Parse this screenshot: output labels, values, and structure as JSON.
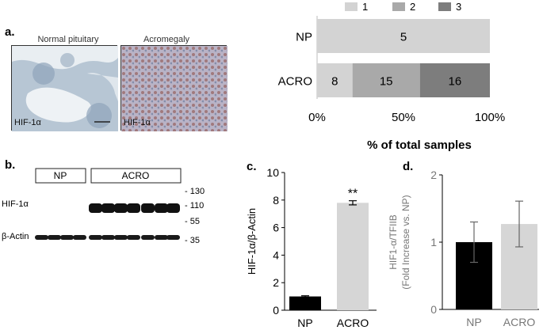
{
  "panel_a": {
    "letter": "a.",
    "images": [
      {
        "title": "Normal pituitary",
        "tag": "HIF-1α"
      },
      {
        "title": "Acromegaly",
        "tag": "HIF-1α"
      }
    ]
  },
  "panel_b": {
    "letter": "b.",
    "groups": [
      "NP",
      "ACRO"
    ],
    "rows": [
      "HIF-1α",
      "β-Actin"
    ],
    "markers": [
      "- 130",
      "- 110",
      "- 55",
      "- 35"
    ]
  },
  "panel_c": {
    "letter": "c."
  },
  "panel_d": {
    "letter": "d."
  },
  "colors": {
    "c1": "#d3d3d3",
    "c2": "#a9a9a9",
    "c3": "#7d7d7d",
    "black": "#000000",
    "lightbar": "#d6d6d6"
  },
  "chart_data": [
    {
      "id": "stacked",
      "type": "bar",
      "orientation": "horizontal-stacked",
      "categories": [
        "NP",
        "ACRO"
      ],
      "series": [
        {
          "name": "1",
          "values": [
            5,
            8
          ]
        },
        {
          "name": "2",
          "values": [
            0,
            15
          ]
        },
        {
          "name": "3",
          "values": [
            0,
            16
          ]
        }
      ],
      "percent_bounds": [
        [
          0,
          100
        ],
        [
          0,
          20.5,
          59.5,
          100
        ]
      ],
      "segment_labels": [
        [
          "5"
        ],
        [
          "8",
          "15",
          "16"
        ]
      ],
      "xlim": [
        0,
        100
      ],
      "xticks": [
        "0%",
        "50%",
        "100%"
      ],
      "xlabel": "% of total samples",
      "legend": [
        "1",
        "2",
        "3"
      ]
    },
    {
      "id": "c",
      "type": "bar",
      "categories": [
        "NP",
        "ACRO"
      ],
      "values": [
        1.0,
        7.8
      ],
      "errors": [
        0.05,
        0.15
      ],
      "ylim": [
        0,
        10
      ],
      "yticks": [
        "0",
        "2",
        "4",
        "6",
        "8",
        "10"
      ],
      "ylabel": "HIF-1α/β-Actin",
      "annotation": "**"
    },
    {
      "id": "d",
      "type": "bar",
      "categories": [
        "NP",
        "ACRO"
      ],
      "values": [
        1.0,
        1.27
      ],
      "errors": [
        0.3,
        0.34
      ],
      "ylim": [
        0,
        2
      ],
      "yticks": [
        "0",
        "1",
        "2"
      ],
      "ylabel": "HIF1-α/TFIIB",
      "ylabel2": "(Fold Increase vs. NP)"
    }
  ]
}
